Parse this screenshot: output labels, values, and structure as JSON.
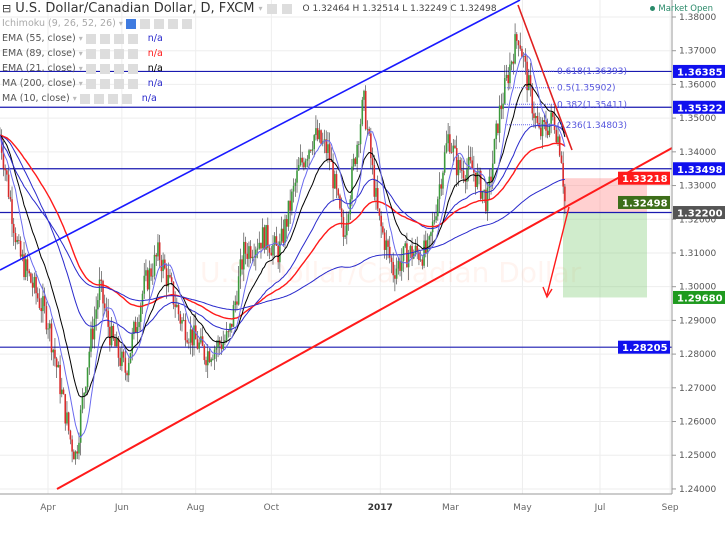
{
  "header": {
    "symbol_title": "U.S. Dollar/Canadian Dollar, D, FXCM",
    "ohlc": {
      "O": "1.32464",
      "H": "1.32514",
      "L": "1.32249",
      "C": "1.32498"
    },
    "market_status": "Market Open"
  },
  "indicators": [
    {
      "label": "Ichimoku (9, 26, 52, 26)",
      "value": ""
    },
    {
      "label": "EMA (55, close)",
      "value": "n/a",
      "color": "#2a2acc"
    },
    {
      "label": "EMA (89, close)",
      "value": "n/a",
      "color": "#ff1a1a"
    },
    {
      "label": "EMA (21, close)",
      "value": "n/a",
      "color": "#000000"
    },
    {
      "label": "MA (200, close)",
      "value": "n/a",
      "color": "#2a2acc"
    },
    {
      "label": "MA (10, close)",
      "value": "n/a",
      "color": "#2a2acc"
    }
  ],
  "watermark": "U.S. Dollar/Canadian Dollar",
  "colors": {
    "up": "#3c9a3c",
    "down": "#d92b2b",
    "blue": "#1a1aff",
    "red": "#ff1a1a"
  },
  "chart_data": {
    "type": "candlestick",
    "title": "U.S. Dollar/Canadian Dollar, D, FXCM",
    "ylim": [
      1.236,
      1.3865
    ],
    "y_ticks": [
      "1.38000",
      "1.37000",
      "1.36000",
      "1.35000",
      "1.34000",
      "1.33000",
      "1.32000",
      "1.31000",
      "1.30000",
      "1.29000",
      "1.28000",
      "1.27000",
      "1.26000",
      "1.25000",
      "1.24000"
    ],
    "x_ticks": [
      {
        "label": "Apr",
        "month_index": 1.3
      },
      {
        "label": "Jun",
        "month_index": 3.3
      },
      {
        "label": "Aug",
        "month_index": 5.3
      },
      {
        "label": "Oct",
        "month_index": 7.35
      },
      {
        "label": "2017",
        "month_index": 10.3,
        "bold": true
      },
      {
        "label": "Mar",
        "month_index": 12.2
      },
      {
        "label": "May",
        "month_index": 14.15
      },
      {
        "label": "Jul",
        "month_index": 16.25
      },
      {
        "label": "Sep",
        "month_index": 18.15
      }
    ],
    "xlim_months": [
      0,
      18.2
    ],
    "close_path": [
      [
        0,
        1.345
      ],
      [
        0.5,
        1.31
      ],
      [
        1.3,
        1.29
      ],
      [
        1.9,
        1.255
      ],
      [
        2.05,
        1.25
      ],
      [
        2.4,
        1.28
      ],
      [
        2.7,
        1.3
      ],
      [
        3.0,
        1.285
      ],
      [
        3.4,
        1.275
      ],
      [
        3.9,
        1.3
      ],
      [
        4.3,
        1.31
      ],
      [
        4.9,
        1.29
      ],
      [
        5.55,
        1.28
      ],
      [
        6.2,
        1.285
      ],
      [
        6.6,
        1.31
      ],
      [
        7.15,
        1.315
      ],
      [
        7.55,
        1.31
      ],
      [
        8.1,
        1.335
      ],
      [
        8.5,
        1.345
      ],
      [
        8.9,
        1.34
      ],
      [
        9.3,
        1.315
      ],
      [
        9.7,
        1.345
      ],
      [
        9.85,
        1.355
      ],
      [
        10.25,
        1.32
      ],
      [
        10.65,
        1.305
      ],
      [
        11.05,
        1.31
      ],
      [
        11.6,
        1.31
      ],
      [
        11.9,
        1.33
      ],
      [
        12.15,
        1.345
      ],
      [
        12.4,
        1.335
      ],
      [
        12.8,
        1.335
      ],
      [
        13.2,
        1.325
      ],
      [
        13.5,
        1.35
      ],
      [
        13.9,
        1.37
      ],
      [
        14.05,
        1.375
      ],
      [
        14.3,
        1.36
      ],
      [
        14.6,
        1.345
      ],
      [
        15.0,
        1.35
      ],
      [
        15.2,
        1.34
      ],
      [
        15.3,
        1.325
      ]
    ],
    "horizontal_levels": [
      {
        "price": 1.36385,
        "label": "1.36385",
        "color": "#1010ee"
      },
      {
        "price": 1.35322,
        "label": "1.35322",
        "color": "#1010ee"
      },
      {
        "price": 1.33498,
        "label": "1.33498",
        "color": "#1010ee"
      },
      {
        "price": 1.322,
        "label": "1.32200",
        "color": "#555555"
      },
      {
        "price": 1.28205,
        "label": "1.28205",
        "color": "#1010ee"
      }
    ],
    "price_markers": [
      {
        "price": 1.33218,
        "label": "1.33218",
        "color": "#ff1a1a"
      },
      {
        "price": 1.32498,
        "label": "1.32498",
        "color": "#3d6e1a"
      },
      {
        "price": 1.2968,
        "label": "1.29680",
        "color": "#1f9a1f"
      }
    ],
    "fibonacci": [
      {
        "label": "0.618(1.36393)",
        "price": 1.36393
      },
      {
        "label": "0.5(1.35902)",
        "price": 1.35902
      },
      {
        "label": "0.382(1.35411)",
        "price": 1.35411
      },
      {
        "label": "0.236(1.34803)",
        "price": 1.34803
      }
    ],
    "position": {
      "stop": 1.33218,
      "entry": 1.322,
      "target": 1.2968
    }
  }
}
